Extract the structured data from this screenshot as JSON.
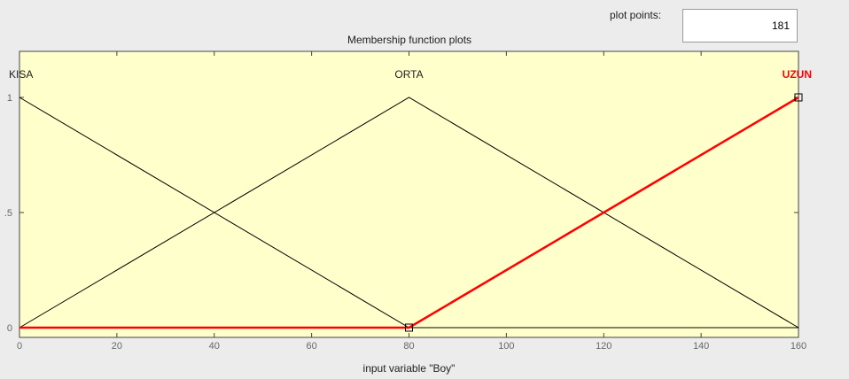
{
  "header": {
    "title": "Membership function plots",
    "plot_points_label": "plot points:",
    "plot_points_value": "181"
  },
  "chart_data": {
    "type": "line",
    "title": "Membership function plots",
    "xlabel": "input variable \"Boy\"",
    "ylabel": "",
    "xlim": [
      0,
      160
    ],
    "ylim": [
      0,
      1
    ],
    "x_ticks": [
      0,
      20,
      40,
      60,
      80,
      100,
      120,
      140,
      160
    ],
    "y_ticks": [
      {
        "value": 0,
        "label": "0"
      },
      {
        "value": 0.5,
        "label": ".5"
      },
      {
        "value": 1,
        "label": "1"
      }
    ],
    "grid": false,
    "background": "#ffffcc",
    "series": [
      {
        "name": "KISA",
        "x": [
          0,
          80,
          160
        ],
        "y": [
          1,
          0,
          0
        ],
        "color": "#000000",
        "selected": false,
        "label_color": "#222222",
        "label_anchor": "start"
      },
      {
        "name": "ORTA",
        "x": [
          0,
          80,
          160
        ],
        "y": [
          0,
          1,
          0
        ],
        "color": "#000000",
        "selected": false,
        "label_color": "#222222",
        "label_anchor": "middle"
      },
      {
        "name": "UZUN",
        "x": [
          0,
          80,
          160
        ],
        "y": [
          0,
          0,
          1
        ],
        "color": "#ff0000",
        "selected": true,
        "label_color": "#ff0000",
        "label_anchor": "end"
      }
    ]
  }
}
